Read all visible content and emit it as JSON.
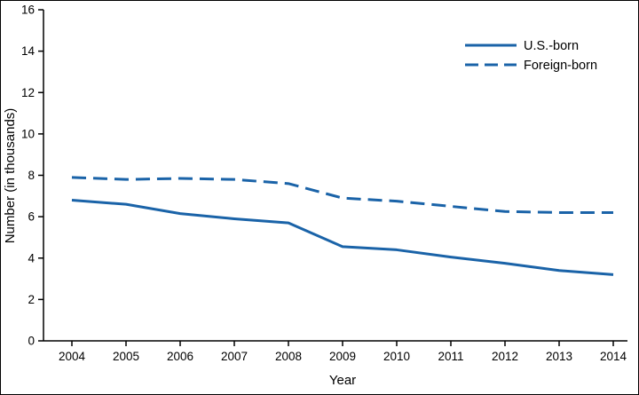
{
  "chart_data": {
    "type": "line",
    "x": [
      2004,
      2005,
      2006,
      2007,
      2008,
      2009,
      2010,
      2011,
      2012,
      2013,
      2014
    ],
    "series": [
      {
        "name": "U.S.-born",
        "style": "solid",
        "values": [
          6.8,
          6.6,
          6.15,
          5.9,
          5.7,
          4.55,
          4.4,
          4.05,
          3.75,
          3.4,
          3.2
        ]
      },
      {
        "name": "Foreign-born",
        "style": "dashed",
        "values": [
          7.9,
          7.8,
          7.85,
          7.8,
          7.6,
          6.9,
          6.75,
          6.5,
          6.25,
          6.2,
          6.2
        ]
      }
    ],
    "title": "",
    "xlabel": "Year",
    "ylabel": "Number (in thousands)",
    "ylim": [
      0,
      16
    ],
    "yticks": [
      0,
      2,
      4,
      6,
      8,
      10,
      12,
      14,
      16
    ],
    "line_color": "#1A63A8",
    "axis_color": "#000000",
    "legend_position": "upper-right",
    "grid": false
  }
}
